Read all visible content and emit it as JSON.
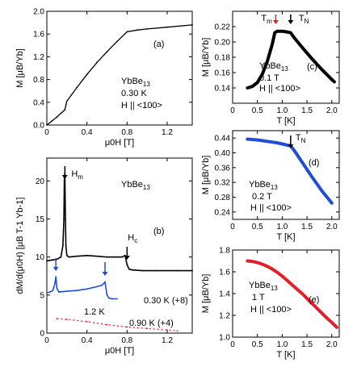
{
  "chart_data": [
    {
      "id": "a",
      "type": "line",
      "panel_label": "(a)",
      "annotation": [
        "YbBe",
        "13",
        "0.30 K",
        "H || <100>"
      ],
      "xlabel": "μ0H [T]",
      "ylabel": "M [μB/Yb]",
      "xlim": [
        0,
        1.45
      ],
      "ylim": [
        0,
        2.0
      ],
      "xticks": [
        0,
        0.4,
        0.8,
        1.2
      ],
      "xtick_labels": [
        "0",
        "0.4",
        "0.8",
        "1.2"
      ],
      "yticks": [
        0,
        0.4,
        0.8,
        1.2,
        1.6,
        2.0
      ],
      "ytick_labels": [
        "0.0",
        "0.4",
        "0.8",
        "1.2",
        "1.6",
        "2.0"
      ],
      "color": "#000000",
      "series": [
        {
          "x": [
            0,
            0.05,
            0.1,
            0.15,
            0.18,
            0.19,
            0.2,
            0.3,
            0.4,
            0.5,
            0.6,
            0.7,
            0.8,
            0.9,
            1.0,
            1.2,
            1.45
          ],
          "y": [
            0,
            0.07,
            0.14,
            0.22,
            0.27,
            0.35,
            0.42,
            0.66,
            0.89,
            1.1,
            1.29,
            1.47,
            1.64,
            1.67,
            1.69,
            1.72,
            1.76
          ]
        }
      ]
    },
    {
      "id": "b",
      "type": "line",
      "panel_label": "(b)",
      "annotation": [
        "YbBe",
        "13"
      ],
      "xlabel": "μ0H [T]",
      "ylabel": "dM/d(μ0H) [μB T-1 Yb-1]",
      "xlim": [
        0,
        1.45
      ],
      "ylim": [
        0,
        23
      ],
      "xticks": [
        0,
        0.4,
        0.8,
        1.2
      ],
      "xtick_labels": [
        "0",
        "0.4",
        "0.8",
        "1.2"
      ],
      "yticks": [
        0,
        5,
        10,
        15,
        20
      ],
      "ytick_labels": [
        "0",
        "5",
        "10",
        "15",
        "20"
      ],
      "markers": [
        {
          "label": "H",
          "sub": "m",
          "x": 0.18
        },
        {
          "label": "H",
          "sub": "c",
          "x": 0.8
        }
      ],
      "series": [
        {
          "name": "0.30 K (+8)",
          "color": "#000000",
          "x": [
            0,
            0.05,
            0.1,
            0.14,
            0.16,
            0.17,
            0.175,
            0.18,
            0.185,
            0.19,
            0.2,
            0.22,
            0.3,
            0.4,
            0.5,
            0.6,
            0.7,
            0.75,
            0.78,
            0.8,
            0.82,
            0.85,
            0.95,
            1.1,
            1.3,
            1.45
          ],
          "y": [
            9.5,
            9.6,
            9.7,
            10.0,
            11.5,
            15.0,
            20.5,
            21.0,
            15.0,
            11.5,
            10.2,
            10.0,
            10.1,
            10.2,
            10.1,
            10.0,
            10.0,
            10.0,
            10.2,
            9.0,
            8.4,
            8.3,
            8.2,
            8.2,
            8.2,
            8.2
          ]
        },
        {
          "name": "0.90 K (+4)",
          "color": "#1f4fd6",
          "x": [
            0,
            0.03,
            0.06,
            0.08,
            0.09,
            0.1,
            0.12,
            0.2,
            0.3,
            0.4,
            0.5,
            0.55,
            0.58,
            0.6,
            0.62,
            0.65,
            0.7
          ],
          "y": [
            5.3,
            5.4,
            5.6,
            6.5,
            7.4,
            5.9,
            5.4,
            5.5,
            5.6,
            5.8,
            6.1,
            6.3,
            6.7,
            5.0,
            4.6,
            4.5,
            4.5
          ]
        },
        {
          "name": "1.2 K",
          "color": "#e0202a",
          "x": [
            0.1,
            0.2,
            0.4,
            0.6,
            0.8,
            1.0,
            1.2,
            1.3
          ],
          "y": [
            1.9,
            1.8,
            1.5,
            1.1,
            0.8,
            0.6,
            0.4,
            0.3
          ]
        }
      ]
    },
    {
      "id": "c",
      "type": "scatter",
      "panel_label": "(c)",
      "annotation": [
        "YbBe",
        "13",
        "0.1 T",
        "H || <100>"
      ],
      "xlabel": "T [K]",
      "ylabel": "M [μB/Yb]",
      "xlim": [
        0,
        2.15
      ],
      "ylim": [
        0.12,
        0.24
      ],
      "xticks": [
        0,
        0.5,
        1.0,
        1.5,
        2.0
      ],
      "xtick_labels": [
        "0",
        "0.5",
        "1.0",
        "1.5",
        "2.0"
      ],
      "yticks": [
        0.14,
        0.16,
        0.18,
        0.2,
        0.22
      ],
      "ytick_labels": [
        "0.14",
        "0.16",
        "0.18",
        "0.20",
        "0.22"
      ],
      "markers": [
        {
          "label": "T",
          "sub": "m",
          "x": 0.87,
          "color": "#e0202a"
        },
        {
          "label": "T",
          "sub": "N",
          "x": 1.17,
          "color": "#000000"
        }
      ],
      "color": "#000000",
      "series": [
        {
          "x": [
            0.3,
            0.4,
            0.5,
            0.6,
            0.7,
            0.8,
            0.85,
            0.9,
            1.0,
            1.1,
            1.17,
            1.25,
            1.4,
            1.6,
            1.8,
            2.0,
            2.05
          ],
          "y": [
            0.14,
            0.142,
            0.147,
            0.158,
            0.175,
            0.197,
            0.212,
            0.214,
            0.214,
            0.213,
            0.212,
            0.205,
            0.193,
            0.178,
            0.164,
            0.151,
            0.148
          ]
        }
      ]
    },
    {
      "id": "d",
      "type": "scatter",
      "panel_label": "(d)",
      "annotation": [
        "YbBe",
        "13",
        "0.2 T",
        "H || <100>"
      ],
      "xlabel": "T [K]",
      "ylabel": "M [μB/Yb]",
      "xlim": [
        0,
        2.15
      ],
      "ylim": [
        0.22,
        0.46
      ],
      "xticks": [
        0,
        0.5,
        1.0,
        1.5,
        2.0
      ],
      "xtick_labels": [
        "0",
        "0.5",
        "1.0",
        "1.5",
        "2.0"
      ],
      "yticks": [
        0.24,
        0.28,
        0.32,
        0.36,
        0.4,
        0.44
      ],
      "ytick_labels": [
        "0.24",
        "0.28",
        "0.32",
        "0.36",
        "0.40",
        "0.44"
      ],
      "markers": [
        {
          "label": "T",
          "sub": "N",
          "x": 1.17,
          "color": "#000000"
        }
      ],
      "color": "#1f4fd6",
      "series": [
        {
          "x": [
            0.3,
            0.4,
            0.5,
            0.6,
            0.7,
            0.8,
            0.9,
            1.0,
            1.1,
            1.17,
            1.25,
            1.4,
            1.6,
            1.8,
            2.0
          ],
          "y": [
            0.437,
            0.436,
            0.435,
            0.433,
            0.431,
            0.429,
            0.427,
            0.424,
            0.421,
            0.419,
            0.405,
            0.375,
            0.335,
            0.297,
            0.264
          ]
        }
      ]
    },
    {
      "id": "e",
      "type": "scatter",
      "panel_label": "(e)",
      "annotation": [
        "YbBe",
        "13",
        "1 T",
        "H || <100>"
      ],
      "xlabel": "T [K]",
      "ylabel": "M [μB/Yb]",
      "xlim": [
        0,
        2.15
      ],
      "ylim": [
        1.0,
        1.8
      ],
      "xticks": [
        0,
        0.5,
        1.0,
        1.5,
        2.0
      ],
      "xtick_labels": [
        "0",
        "0.5",
        "1.0",
        "1.5",
        "2.0"
      ],
      "yticks": [
        1.0,
        1.2,
        1.4,
        1.6,
        1.8
      ],
      "ytick_labels": [
        "1.0",
        "1.2",
        "1.4",
        "1.6",
        "1.8"
      ],
      "color": "#e0202a",
      "series": [
        {
          "x": [
            0.3,
            0.4,
            0.5,
            0.6,
            0.7,
            0.8,
            0.9,
            1.0,
            1.1,
            1.2,
            1.3,
            1.4,
            1.5,
            1.6,
            1.7,
            1.8,
            1.9,
            2.0,
            2.1
          ],
          "y": [
            1.7,
            1.695,
            1.685,
            1.67,
            1.65,
            1.625,
            1.595,
            1.56,
            1.52,
            1.48,
            1.44,
            1.4,
            1.355,
            1.31,
            1.265,
            1.22,
            1.175,
            1.135,
            1.09
          ]
        }
      ]
    }
  ]
}
